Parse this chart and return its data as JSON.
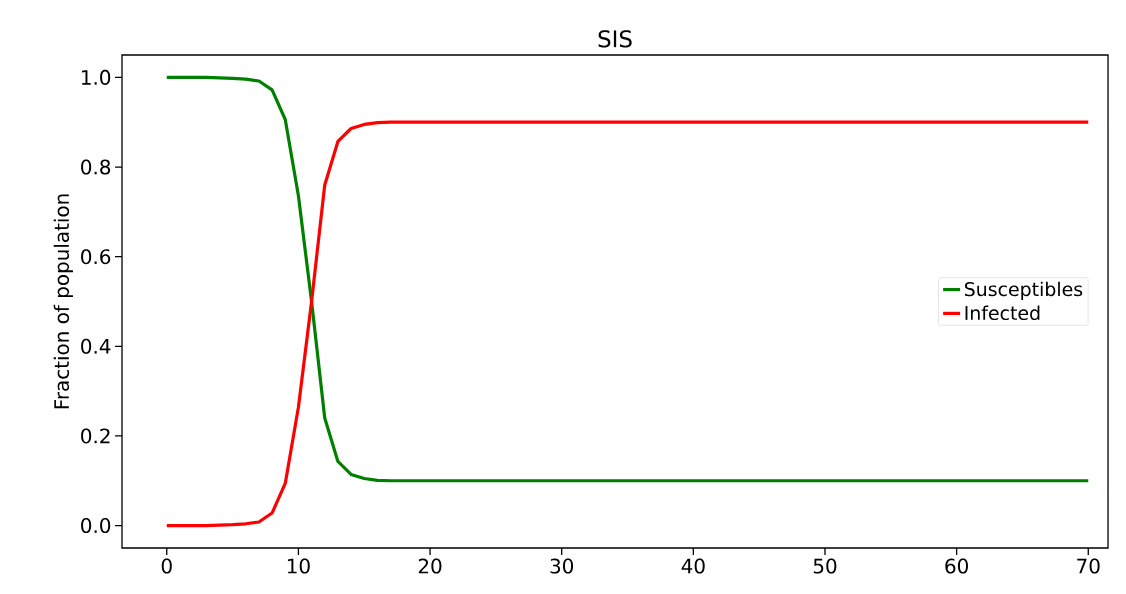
{
  "chart_data": {
    "type": "line",
    "title": "SIS",
    "ylabel": "Fraction of population",
    "x": [
      0,
      1,
      2,
      3,
      4,
      5,
      6,
      7,
      8,
      9,
      10,
      11,
      12,
      13,
      14,
      15,
      16,
      17,
      18,
      19,
      20,
      30,
      40,
      50,
      60,
      70
    ],
    "series": [
      {
        "name": "Susceptibles",
        "color": "#008000",
        "values": [
          1.0,
          1.0,
          1.0,
          1.0,
          0.999,
          0.998,
          0.996,
          0.992,
          0.972,
          0.906,
          0.736,
          0.5,
          0.24,
          0.143,
          0.114,
          0.105,
          0.101,
          0.1,
          0.1,
          0.1,
          0.1,
          0.1,
          0.1,
          0.1,
          0.1,
          0.1
        ]
      },
      {
        "name": "Infected",
        "color": "#ff0000",
        "values": [
          0.0,
          0.0,
          0.0,
          0.0,
          0.001,
          0.002,
          0.004,
          0.008,
          0.028,
          0.094,
          0.264,
          0.5,
          0.76,
          0.857,
          0.886,
          0.895,
          0.899,
          0.9,
          0.9,
          0.9,
          0.9,
          0.9,
          0.9,
          0.9,
          0.9,
          0.9
        ]
      }
    ],
    "xlim": [
      -3.4,
      71.5
    ],
    "ylim": [
      -0.05,
      1.05
    ],
    "xticks": [
      0,
      10,
      20,
      30,
      40,
      50,
      60,
      70
    ],
    "yticks": [
      {
        "value": 0,
        "label": "0.0"
      },
      {
        "value": 0.2,
        "label": "0.2"
      },
      {
        "value": 0.4,
        "label": "0.4"
      },
      {
        "value": 0.6,
        "label": "0.6"
      },
      {
        "value": 0.8,
        "label": "0.8"
      },
      {
        "value": 1,
        "label": "1.0"
      }
    ],
    "legend": "right"
  }
}
